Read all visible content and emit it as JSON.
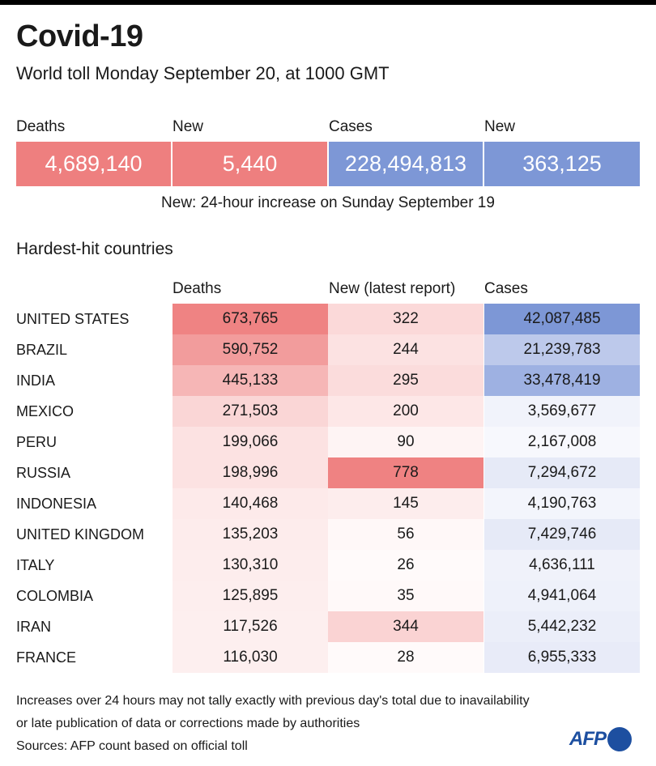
{
  "header": {
    "title": "Covid-19",
    "subtitle": "World toll Monday September 20, at 1000 GMT"
  },
  "summary": {
    "deaths_label": "Deaths",
    "deaths_value": "4,689,140",
    "new_deaths_label": "New",
    "new_deaths_value": "5,440",
    "cases_label": "Cases",
    "cases_value": "228,494,813",
    "new_cases_label": "New",
    "new_cases_value": "363,125",
    "note": "New: 24-hour increase on Sunday September 19"
  },
  "countries_section": {
    "title": "Hardest-hit countries",
    "headers": {
      "deaths": "Deaths",
      "new": "New (latest report)",
      "cases": "Cases"
    },
    "rows": [
      {
        "country": "UNITED STATES",
        "deaths": "673,765",
        "new": "322",
        "cases": "42,087,485"
      },
      {
        "country": "BRAZIL",
        "deaths": "590,752",
        "new": "244",
        "cases": "21,239,783"
      },
      {
        "country": "INDIA",
        "deaths": "445,133",
        "new": "295",
        "cases": "33,478,419"
      },
      {
        "country": "MEXICO",
        "deaths": "271,503",
        "new": "200",
        "cases": "3,569,677"
      },
      {
        "country": "PERU",
        "deaths": "199,066",
        "new": "90",
        "cases": "2,167,008"
      },
      {
        "country": "RUSSIA",
        "deaths": "198,996",
        "new": "778",
        "cases": "7,294,672"
      },
      {
        "country": "INDONESIA",
        "deaths": "140,468",
        "new": "145",
        "cases": "4,190,763"
      },
      {
        "country": "UNITED KINGDOM",
        "deaths": "135,203",
        "new": "56",
        "cases": "7,429,746"
      },
      {
        "country": "ITALY",
        "deaths": "130,310",
        "new": "26",
        "cases": "4,636,111"
      },
      {
        "country": "COLOMBIA",
        "deaths": "125,895",
        "new": "35",
        "cases": "4,941,064"
      },
      {
        "country": "IRAN",
        "deaths": "117,526",
        "new": "344",
        "cases": "5,442,232"
      },
      {
        "country": "FRANCE",
        "deaths": "116,030",
        "new": "28",
        "cases": "6,955,333"
      }
    ]
  },
  "footer": {
    "line1": "Increases over 24 hours may not tally exactly with previous day's total due to inavailability",
    "line2": "or late publication of data or corrections made by authorities",
    "sources": "Sources: AFP count based on official toll",
    "logo_text": "AFP"
  },
  "colors": {
    "red": "#ee7f7f",
    "blue": "#7d97d6",
    "logo_blue": "#1d4fa0"
  }
}
